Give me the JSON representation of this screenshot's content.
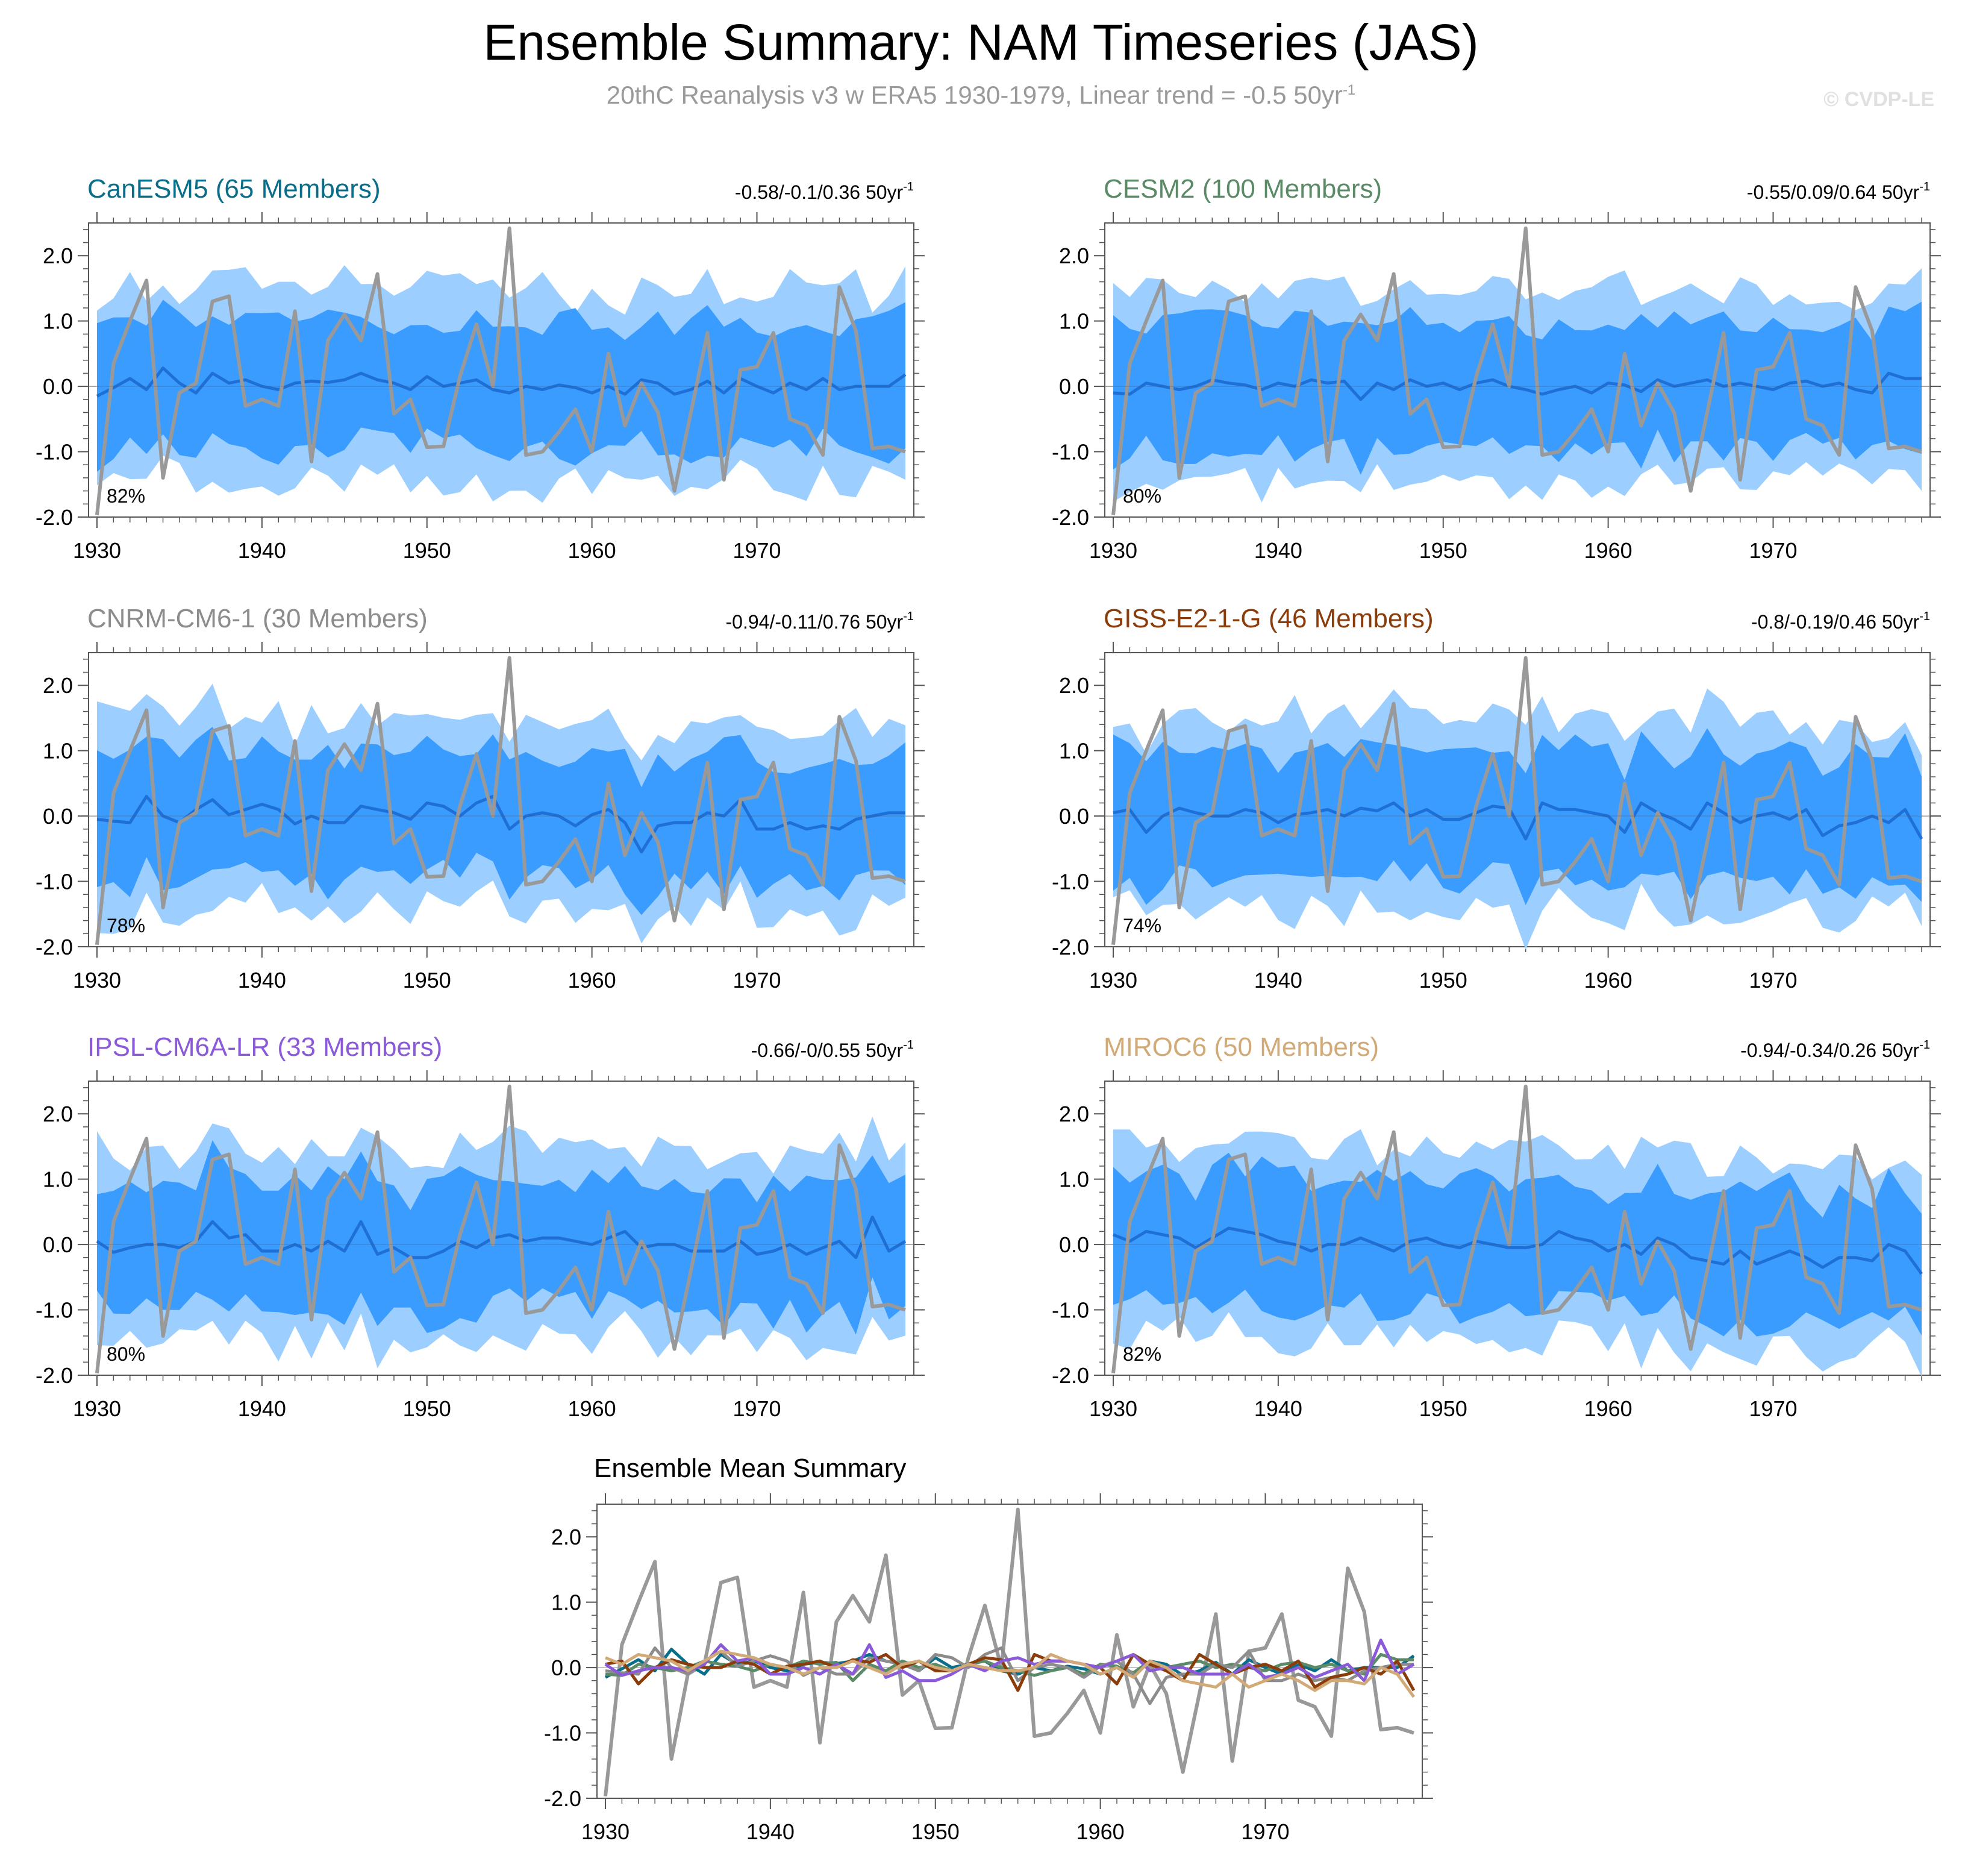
{
  "title": "Ensemble Summary: NAM Timeseries (JAS)",
  "subtitle": {
    "text": "20thC Reanalysis v3 w ERA5 1930-1979, Linear trend = -0.5 50yr",
    "sup": "-1"
  },
  "watermark": "© CVDP-LE",
  "colors": {
    "band_outer": "#9ccfff",
    "band_inner": "#3a9cff",
    "ens_mean": "#1e6fd6",
    "obs": "#999999",
    "CanESM5": "#0a6e8a",
    "CESM2": "#5a8a66",
    "CNRM-CM6-1": "#8c8c8c",
    "GISS-E2-1-G": "#8a3c0a",
    "IPSL-CM6A-LR": "#8a5ad8",
    "MIROC6": "#d2aa78"
  },
  "chart_data": {
    "type": "line",
    "x": [
      1930,
      1931,
      1932,
      1933,
      1934,
      1935,
      1936,
      1937,
      1938,
      1939,
      1940,
      1941,
      1942,
      1943,
      1944,
      1945,
      1946,
      1947,
      1948,
      1949,
      1950,
      1951,
      1952,
      1953,
      1954,
      1955,
      1956,
      1957,
      1958,
      1959,
      1960,
      1961,
      1962,
      1963,
      1964,
      1965,
      1966,
      1967,
      1968,
      1969,
      1970,
      1971,
      1972,
      1973,
      1974,
      1975,
      1976,
      1977,
      1978,
      1979
    ],
    "ylim": [
      -2.0,
      2.5
    ],
    "yticks": [
      "2.0",
      "1.0",
      "0.0",
      "-1.0",
      "-2.0"
    ],
    "xticks": [
      "1930",
      "1940",
      "1950",
      "1960",
      "1970"
    ],
    "observed": {
      "name": "20thC Reanalysis v3 w ERA5",
      "values": [
        -1.97,
        0.35,
        1.0,
        1.62,
        -1.4,
        -0.1,
        0.05,
        1.3,
        1.38,
        -0.3,
        -0.2,
        -0.3,
        1.15,
        -1.15,
        0.7,
        1.1,
        0.7,
        1.72,
        -0.42,
        -0.2,
        -0.93,
        -0.92,
        0.15,
        0.95,
        0.0,
        2.42,
        -1.05,
        -1.0,
        -0.7,
        -0.35,
        -1.0,
        0.5,
        -0.6,
        0.05,
        -0.4,
        -1.6,
        -0.4,
        0.82,
        -1.43,
        0.25,
        0.3,
        0.82,
        -0.5,
        -0.6,
        -1.05,
        1.52,
        0.85,
        -0.95,
        -0.92,
        -1.0
      ]
    },
    "panels": [
      {
        "model": "CanESM5",
        "members": "65 Members",
        "stats": "-0.58/-0.1/0.36 50yr",
        "stats_sup": "-1",
        "pct": "82%",
        "seed": 11,
        "mean": [
          -0.15,
          -0.02,
          0.12,
          -0.05,
          0.28,
          0.05,
          -0.1,
          0.2,
          0.05,
          0.1,
          0.0,
          -0.05,
          0.05,
          0.08,
          0.06,
          0.1,
          0.2,
          0.1,
          0.05,
          -0.05,
          0.15,
          0.0,
          0.05,
          0.1,
          -0.05,
          -0.1,
          0.0,
          -0.05,
          0.02,
          -0.02,
          -0.1,
          0.0,
          -0.12,
          0.1,
          0.05,
          -0.12,
          -0.05,
          0.08,
          -0.1,
          0.12,
          0.0,
          -0.1,
          0.05,
          -0.05,
          0.12,
          -0.05,
          0.0,
          0.0,
          0.0,
          0.18
        ]
      },
      {
        "model": "CESM2",
        "members": "100 Members",
        "stats": "-0.55/0.09/0.64 50yr",
        "stats_sup": "-1",
        "pct": "80%",
        "seed": 23,
        "mean": [
          -0.1,
          -0.12,
          0.05,
          0.0,
          -0.05,
          0.0,
          0.1,
          0.05,
          0.02,
          -0.05,
          0.05,
          0.0,
          0.1,
          0.05,
          0.08,
          -0.2,
          0.05,
          -0.05,
          0.1,
          0.0,
          0.05,
          -0.05,
          0.05,
          0.1,
          0.0,
          -0.05,
          -0.12,
          -0.05,
          0.0,
          -0.1,
          0.05,
          0.02,
          -0.08,
          0.1,
          0.0,
          0.05,
          0.1,
          0.0,
          0.05,
          0.0,
          -0.05,
          0.05,
          0.08,
          0.0,
          0.05,
          -0.05,
          -0.1,
          0.2,
          0.12,
          0.12
        ]
      },
      {
        "model": "CNRM-CM6-1",
        "members": "30 Members",
        "stats": "-0.94/-0.11/0.76 50yr",
        "stats_sup": "-1",
        "pct": "78%",
        "seed": 37,
        "mean": [
          -0.05,
          -0.08,
          -0.1,
          0.3,
          0.0,
          -0.1,
          0.1,
          0.25,
          0.02,
          0.1,
          0.18,
          0.1,
          -0.12,
          0.0,
          -0.1,
          -0.1,
          0.15,
          0.1,
          0.05,
          -0.05,
          0.2,
          0.15,
          0.0,
          0.2,
          0.3,
          -0.2,
          0.0,
          0.05,
          0.0,
          -0.15,
          0.02,
          0.1,
          -0.1,
          -0.55,
          -0.15,
          -0.1,
          -0.1,
          0.05,
          0.0,
          0.25,
          -0.2,
          -0.2,
          -0.1,
          -0.2,
          -0.15,
          -0.2,
          -0.05,
          0.0,
          0.05,
          0.05
        ]
      },
      {
        "model": "GISS-E2-1-G",
        "members": "46 Members",
        "stats": "-0.8/-0.19/0.46 50yr",
        "stats_sup": "-1",
        "pct": "74%",
        "seed": 41,
        "mean": [
          0.05,
          0.1,
          -0.25,
          0.0,
          0.12,
          0.05,
          0.0,
          0.0,
          0.1,
          0.05,
          -0.1,
          0.02,
          0.05,
          0.1,
          0.0,
          0.12,
          0.08,
          0.2,
          0.0,
          0.1,
          -0.05,
          -0.05,
          0.05,
          0.15,
          0.12,
          -0.35,
          0.2,
          0.1,
          0.1,
          0.05,
          0.0,
          -0.25,
          0.2,
          0.05,
          -0.05,
          -0.2,
          0.2,
          0.05,
          -0.1,
          0.0,
          0.05,
          -0.05,
          0.1,
          -0.3,
          -0.15,
          -0.1,
          0.0,
          -0.1,
          0.1,
          -0.35
        ]
      },
      {
        "model": "IPSL-CM6A-LR",
        "members": "33 Members",
        "stats": "-0.66/-0/0.55 50yr",
        "stats_sup": "-1",
        "pct": "80%",
        "seed": 53,
        "mean": [
          0.05,
          -0.12,
          -0.05,
          0.0,
          0.0,
          -0.05,
          0.05,
          0.35,
          0.1,
          0.15,
          -0.1,
          -0.1,
          0.0,
          -0.1,
          0.05,
          -0.1,
          0.35,
          -0.15,
          -0.05,
          -0.2,
          -0.2,
          -0.1,
          0.05,
          -0.05,
          0.1,
          0.15,
          0.05,
          0.1,
          0.1,
          0.05,
          0.0,
          0.1,
          0.2,
          -0.05,
          0.0,
          0.0,
          -0.1,
          -0.1,
          -0.1,
          0.05,
          -0.15,
          -0.1,
          0.0,
          -0.15,
          -0.05,
          0.05,
          -0.2,
          0.42,
          -0.1,
          0.05
        ]
      },
      {
        "model": "MIROC6",
        "members": "50 Members",
        "stats": "-0.94/-0.34/0.26 50yr",
        "stats_sup": "-1",
        "pct": "82%",
        "seed": 67,
        "mean": [
          0.15,
          0.05,
          0.2,
          0.15,
          0.1,
          -0.05,
          0.1,
          0.25,
          0.2,
          0.15,
          0.05,
          0.0,
          -0.1,
          0.0,
          0.0,
          0.1,
          0.0,
          -0.1,
          0.05,
          0.1,
          0.0,
          -0.05,
          0.05,
          0.0,
          -0.05,
          -0.05,
          0.0,
          0.2,
          0.1,
          0.05,
          -0.1,
          0.0,
          -0.15,
          0.1,
          0.0,
          -0.2,
          -0.25,
          -0.3,
          -0.1,
          -0.3,
          -0.2,
          -0.1,
          -0.2,
          -0.35,
          -0.2,
          -0.2,
          -0.25,
          0.0,
          -0.1,
          -0.45
        ]
      }
    ],
    "summary": {
      "title": "Ensemble Mean Summary",
      "ylim": [
        -2.0,
        2.5
      ]
    }
  }
}
